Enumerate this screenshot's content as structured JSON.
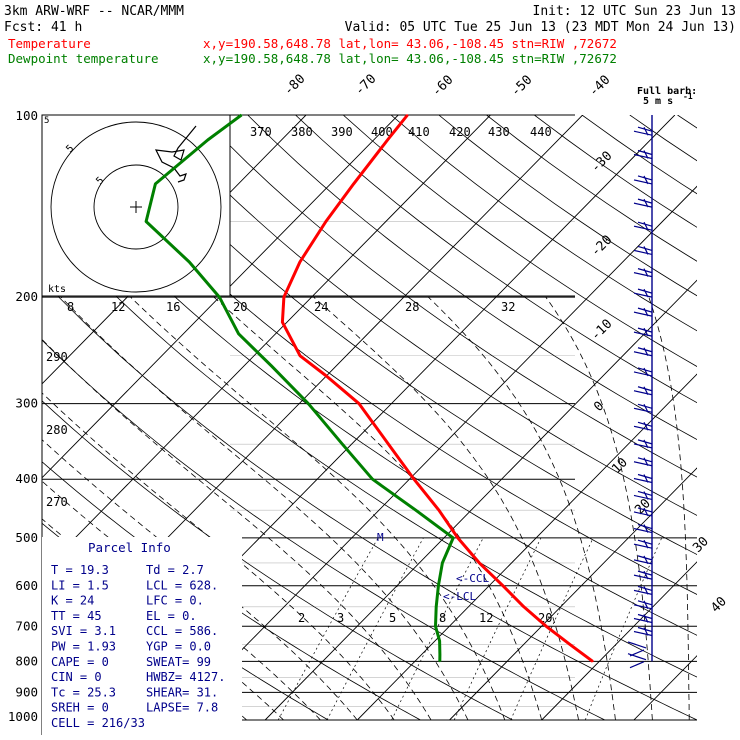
{
  "header": {
    "model": "3km ARW-WRF -- NCAR/MMM",
    "init": "Init: 12 UTC Sun 23 Jun 13",
    "fcst": "Fcst:   41 h",
    "valid": "Valid: 05 UTC Tue 25 Jun 13 (23 MDT Mon 24 Jun 13)",
    "temp_label": "Temperature",
    "temp_loc": "x,y=190.58,648.78   lat,lon= 43.06,-108.45  stn=RIW ,72672",
    "dew_label": "Dewpoint temperature",
    "dew_loc": "x,y=190.58,648.78   lat,lon= 43.06,-108.45  stn=RIW ,72672"
  },
  "colors": {
    "temperature": "#ff0000",
    "dewpoint": "#008000",
    "text_info": "#00008b",
    "header_red": "#ff0000",
    "header_green": "#008000"
  },
  "wind_key": {
    "title": "Full barb:",
    "value": "5 m s",
    "exponent": "-1"
  },
  "hodograph": {
    "units": "kts",
    "ring_labels": [
      "5",
      "5"
    ]
  },
  "parcel_info": {
    "title": "Parcel Info",
    "rows": [
      [
        "T  =    19.3",
        "Td =    2.7"
      ],
      [
        "LI =     1.5",
        "LCL =  628."
      ],
      [
        "K  =      24",
        "LFC =     0."
      ],
      [
        "TT =      45",
        "EL  =     0."
      ],
      [
        "SVI =    3.1",
        "CCL =  586."
      ],
      [
        "PW =    1.93",
        "YGP =    0.0"
      ],
      [
        "CAPE =     0",
        "SWEAT=   99"
      ],
      [
        "CIN  =     0",
        "HWBZ= 4127."
      ],
      [
        "Tc  =   25.3",
        "SHEAR=  31."
      ],
      [
        "SREH =     0",
        "LAPSE=   7.8"
      ],
      [
        "CELL = 216/33",
        ""
      ]
    ]
  },
  "markers": {
    "ccl": "<-CCL",
    "lcl": "<-LCL",
    "m": "M"
  },
  "chart_data": {
    "type": "line",
    "title": "",
    "y_axis": {
      "label": "",
      "scale": "log",
      "ticks": [
        100,
        200,
        300,
        400,
        500,
        600,
        700,
        800,
        900,
        1000
      ],
      "units": "hPa"
    },
    "isotherm_labels": [
      "-80",
      "-70",
      "-60",
      "-50",
      "-40",
      "-30",
      "-20",
      "-10",
      "0",
      "10",
      "20",
      "30",
      "40"
    ],
    "theta_e_labels": [
      "370",
      "380",
      "390",
      "400",
      "410",
      "420",
      "430",
      "440"
    ],
    "mixing_ratio_upper_labels": [
      "8",
      "12",
      "16",
      "20",
      "24",
      "28",
      "32"
    ],
    "mixing_ratio_lower_labels": [
      "2",
      "3",
      "5",
      "8",
      "12",
      "20"
    ],
    "theta_labels": [
      "290",
      "280",
      "270"
    ],
    "series": [
      {
        "name": "Temperature",
        "color": "#ff0000",
        "points": [
          {
            "p": 800,
            "t": 19.3
          },
          {
            "p": 750,
            "t": 15.0
          },
          {
            "p": 700,
            "t": 10.5
          },
          {
            "p": 650,
            "t": 6.0
          },
          {
            "p": 600,
            "t": 1.5
          },
          {
            "p": 550,
            "t": -3.5
          },
          {
            "p": 500,
            "t": -8.5
          },
          {
            "p": 450,
            "t": -13.5
          },
          {
            "p": 400,
            "t": -19.5
          },
          {
            "p": 350,
            "t": -26.0
          },
          {
            "p": 300,
            "t": -33.5
          },
          {
            "p": 270,
            "t": -40.0
          },
          {
            "p": 250,
            "t": -45.0
          },
          {
            "p": 220,
            "t": -50.5
          },
          {
            "p": 200,
            "t": -53.0
          },
          {
            "p": 175,
            "t": -55.0
          },
          {
            "p": 150,
            "t": -56.5
          },
          {
            "p": 130,
            "t": -57.5
          },
          {
            "p": 110,
            "t": -58.5
          },
          {
            "p": 100,
            "t": -59.0
          }
        ]
      },
      {
        "name": "Dewpoint temperature",
        "color": "#008000",
        "points": [
          {
            "p": 800,
            "t": 2.7
          },
          {
            "p": 780,
            "t": 2.0
          },
          {
            "p": 740,
            "t": 0.5
          },
          {
            "p": 700,
            "t": -1.5
          },
          {
            "p": 650,
            "t": -3.5
          },
          {
            "p": 600,
            "t": -5.5
          },
          {
            "p": 550,
            "t": -7.5
          },
          {
            "p": 500,
            "t": -9.0
          },
          {
            "p": 450,
            "t": -16.0
          },
          {
            "p": 400,
            "t": -24.0
          },
          {
            "p": 350,
            "t": -31.0
          },
          {
            "p": 300,
            "t": -39.0
          },
          {
            "p": 260,
            "t": -47.0
          },
          {
            "p": 230,
            "t": -54.0
          },
          {
            "p": 200,
            "t": -60.0
          },
          {
            "p": 175,
            "t": -67.0
          },
          {
            "p": 150,
            "t": -76.0
          },
          {
            "p": 130,
            "t": -79.0
          },
          {
            "p": 110,
            "t": -78.0
          },
          {
            "p": 100,
            "t": -77.0
          }
        ]
      }
    ],
    "wind_profile_pressures": [
      108,
      118,
      130,
      142,
      155,
      170,
      185,
      200,
      215,
      232,
      250,
      270,
      290,
      310,
      332,
      355,
      380,
      405,
      432,
      460,
      490,
      520,
      552,
      585,
      620,
      655,
      690,
      725,
      760,
      795
    ]
  }
}
